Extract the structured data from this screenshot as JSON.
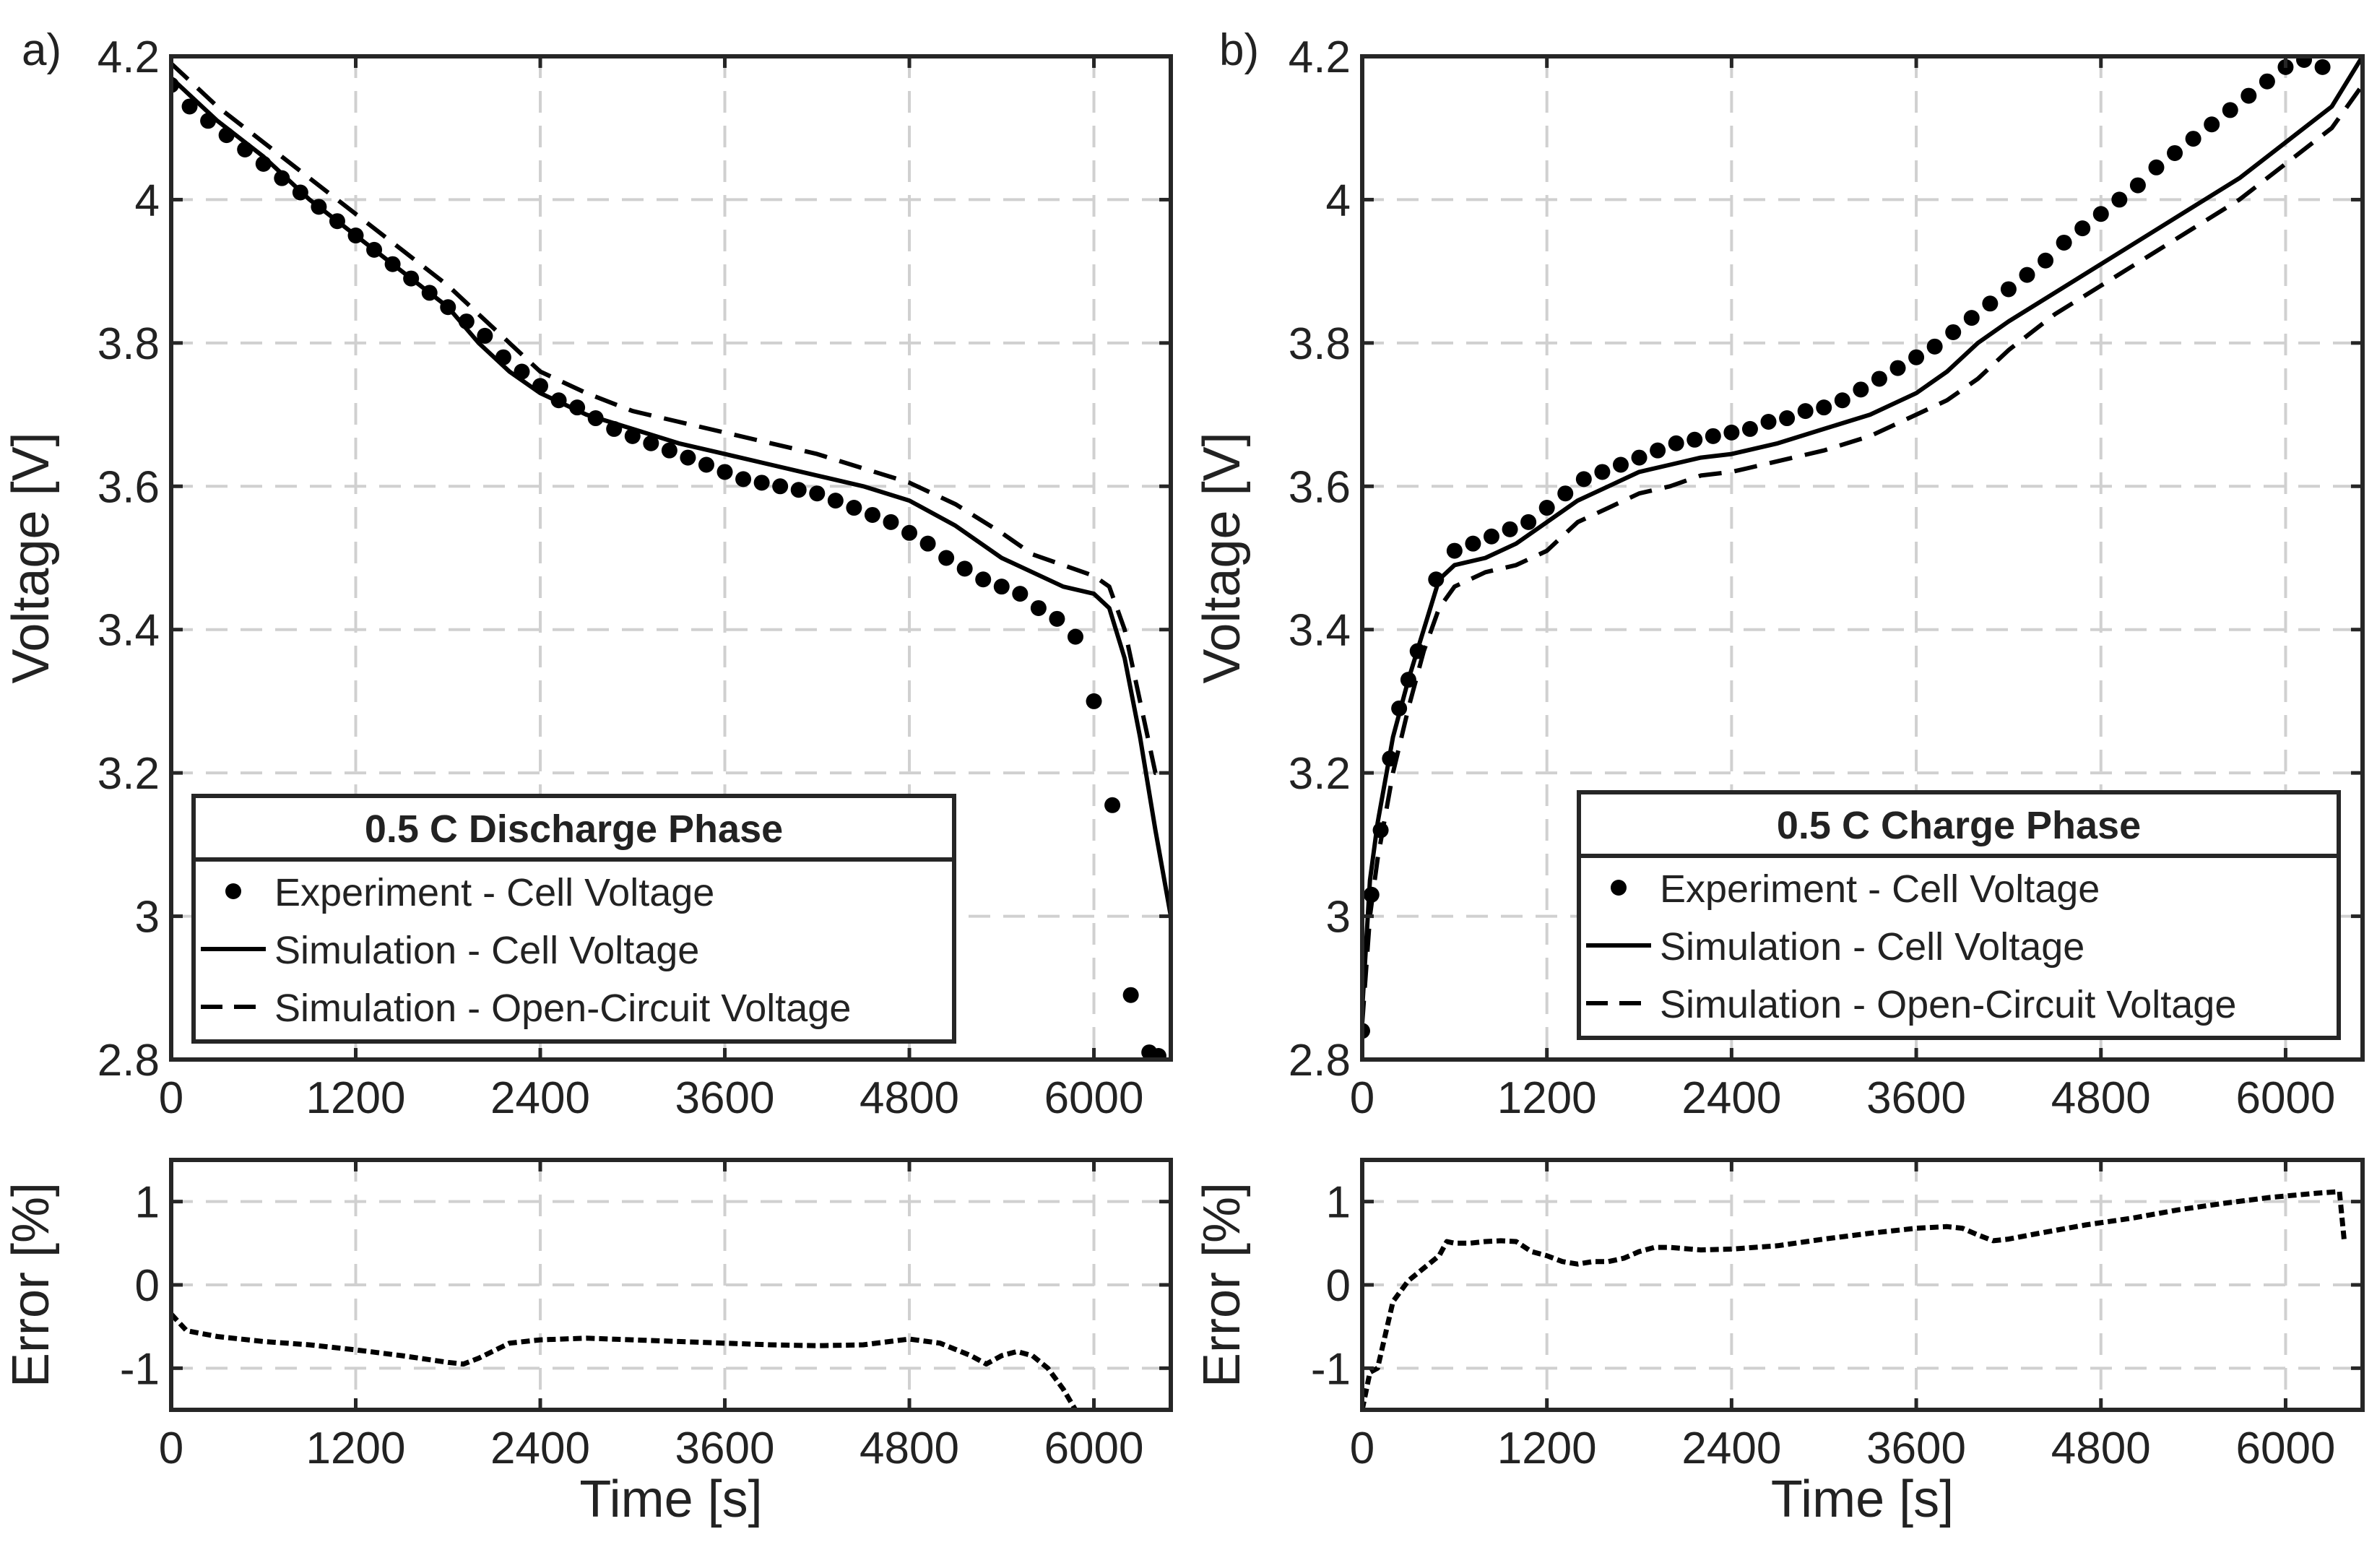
{
  "chart_data": [
    {
      "id": "a-main",
      "panel_label": "a)",
      "type": "line",
      "xlabel": "",
      "ylabel": "Voltage [V]",
      "xlim": [
        0,
        6500
      ],
      "ylim": [
        2.8,
        4.2
      ],
      "xticks": [
        0,
        1200,
        2400,
        3600,
        4800,
        6000
      ],
      "yticks": [
        2.8,
        3,
        3.2,
        3.4,
        3.6,
        3.8,
        4,
        4.2
      ],
      "grid": true,
      "legend": {
        "title": "0.5 C Discharge Phase",
        "placement": "bottom-center",
        "entries": [
          "Experiment - Cell Voltage",
          "Simulation - Cell Voltage",
          "Simulation - Open-Circuit Voltage"
        ]
      },
      "series": [
        {
          "name": "Experiment - Cell Voltage",
          "style": "dots",
          "x": [
            0,
            120,
            240,
            360,
            480,
            600,
            720,
            840,
            960,
            1080,
            1200,
            1320,
            1440,
            1560,
            1680,
            1800,
            1920,
            2040,
            2160,
            2280,
            2400,
            2520,
            2640,
            2760,
            2880,
            3000,
            3120,
            3240,
            3360,
            3480,
            3600,
            3720,
            3840,
            3960,
            4080,
            4200,
            4320,
            4440,
            4560,
            4680,
            4800,
            4920,
            5040,
            5160,
            5280,
            5400,
            5520,
            5640,
            5760,
            5880,
            6000,
            6120,
            6240,
            6360,
            6420
          ],
          "y": [
            4.16,
            4.13,
            4.11,
            4.09,
            4.07,
            4.05,
            4.03,
            4.01,
            3.99,
            3.97,
            3.95,
            3.93,
            3.91,
            3.89,
            3.87,
            3.85,
            3.83,
            3.81,
            3.78,
            3.76,
            3.74,
            3.72,
            3.71,
            3.695,
            3.68,
            3.67,
            3.66,
            3.65,
            3.64,
            3.63,
            3.62,
            3.61,
            3.605,
            3.6,
            3.595,
            3.59,
            3.58,
            3.57,
            3.56,
            3.55,
            3.535,
            3.52,
            3.5,
            3.485,
            3.47,
            3.46,
            3.45,
            3.43,
            3.415,
            3.39,
            3.3,
            3.155,
            2.89,
            2.81,
            2.805
          ]
        },
        {
          "name": "Simulation - Cell Voltage",
          "style": "solid",
          "x": [
            0,
            300,
            600,
            900,
            1200,
            1500,
            1800,
            2000,
            2200,
            2400,
            2700,
            3000,
            3300,
            3600,
            3900,
            4200,
            4500,
            4800,
            5100,
            5400,
            5600,
            5800,
            6000,
            6100,
            6200,
            6300,
            6400,
            6500
          ],
          "y": [
            4.17,
            4.11,
            4.06,
            4.0,
            3.95,
            3.9,
            3.85,
            3.8,
            3.76,
            3.73,
            3.7,
            3.68,
            3.66,
            3.645,
            3.63,
            3.615,
            3.6,
            3.58,
            3.545,
            3.5,
            3.48,
            3.46,
            3.45,
            3.43,
            3.36,
            3.25,
            3.12,
            3.0
          ]
        },
        {
          "name": "Simulation - Open-Circuit Voltage",
          "style": "dashed",
          "x": [
            0,
            300,
            600,
            900,
            1200,
            1500,
            1800,
            2000,
            2200,
            2400,
            2700,
            3000,
            3300,
            3600,
            3900,
            4200,
            4500,
            4800,
            5100,
            5400,
            5600,
            5800,
            6000,
            6100,
            6200,
            6300,
            6400,
            6480
          ],
          "y": [
            4.19,
            4.13,
            4.08,
            4.03,
            3.98,
            3.93,
            3.88,
            3.84,
            3.8,
            3.76,
            3.73,
            3.705,
            3.69,
            3.675,
            3.66,
            3.645,
            3.625,
            3.605,
            3.575,
            3.535,
            3.505,
            3.49,
            3.475,
            3.46,
            3.4,
            3.3,
            3.2,
            3.2
          ]
        }
      ]
    },
    {
      "id": "a-error",
      "type": "line",
      "xlabel": "Time [s]",
      "ylabel": "Error [%]",
      "xlim": [
        0,
        6500
      ],
      "ylim": [
        -1.5,
        1.5
      ],
      "xticks": [
        0,
        1200,
        2400,
        3600,
        4800,
        6000
      ],
      "yticks": [
        -1,
        0,
        1
      ],
      "grid": true,
      "series": [
        {
          "style": "dashed-fine",
          "x": [
            0,
            100,
            300,
            600,
            900,
            1200,
            1500,
            1800,
            1900,
            2000,
            2200,
            2400,
            2700,
            3000,
            3300,
            3600,
            3900,
            4200,
            4500,
            4800,
            5000,
            5200,
            5300,
            5400,
            5500,
            5600,
            5700,
            5800,
            5880
          ],
          "y": [
            -0.35,
            -0.55,
            -0.62,
            -0.68,
            -0.72,
            -0.78,
            -0.85,
            -0.93,
            -0.95,
            -0.88,
            -0.7,
            -0.66,
            -0.64,
            -0.66,
            -0.68,
            -0.7,
            -0.72,
            -0.73,
            -0.72,
            -0.65,
            -0.7,
            -0.85,
            -0.95,
            -0.85,
            -0.8,
            -0.85,
            -1.0,
            -1.25,
            -1.5
          ]
        }
      ]
    },
    {
      "id": "b-main",
      "panel_label": "b)",
      "type": "line",
      "xlabel": "",
      "ylabel": "Voltage [V]",
      "xlim": [
        0,
        6500
      ],
      "ylim": [
        2.8,
        4.2
      ],
      "xticks": [
        0,
        1200,
        2400,
        3600,
        4800,
        6000
      ],
      "yticks": [
        2.8,
        3,
        3.2,
        3.4,
        3.6,
        3.8,
        4,
        4.2
      ],
      "grid": true,
      "legend": {
        "title": "0.5 C Charge Phase",
        "placement": "bottom-right",
        "entries": [
          "Experiment - Cell Voltage",
          "Simulation - Cell Voltage",
          "Simulation - Open-Circuit Voltage"
        ]
      },
      "series": [
        {
          "name": "Experiment - Cell Voltage",
          "style": "dots",
          "x": [
            0,
            60,
            120,
            180,
            240,
            300,
            360,
            480,
            600,
            720,
            840,
            960,
            1080,
            1200,
            1320,
            1440,
            1560,
            1680,
            1800,
            1920,
            2040,
            2160,
            2280,
            2400,
            2520,
            2640,
            2760,
            2880,
            3000,
            3120,
            3240,
            3360,
            3480,
            3600,
            3720,
            3840,
            3960,
            4080,
            4200,
            4320,
            4440,
            4560,
            4680,
            4800,
            4920,
            5040,
            5160,
            5280,
            5400,
            5520,
            5640,
            5760,
            5880,
            6000,
            6120,
            6240
          ],
          "y": [
            2.84,
            3.03,
            3.12,
            3.22,
            3.29,
            3.33,
            3.37,
            3.47,
            3.51,
            3.52,
            3.53,
            3.54,
            3.55,
            3.57,
            3.59,
            3.61,
            3.62,
            3.63,
            3.64,
            3.65,
            3.66,
            3.665,
            3.67,
            3.675,
            3.68,
            3.69,
            3.695,
            3.705,
            3.71,
            3.72,
            3.735,
            3.75,
            3.765,
            3.78,
            3.795,
            3.815,
            3.835,
            3.855,
            3.875,
            3.895,
            3.915,
            3.94,
            3.96,
            3.98,
            4.0,
            4.02,
            4.045,
            4.065,
            4.085,
            4.105,
            4.125,
            4.145,
            4.165,
            4.185,
            4.195,
            4.185
          ]
        },
        {
          "name": "Simulation - Cell Voltage",
          "style": "solid",
          "x": [
            0,
            50,
            100,
            200,
            300,
            400,
            500,
            600,
            800,
            1000,
            1200,
            1400,
            1600,
            1800,
            2000,
            2200,
            2400,
            2700,
            3000,
            3300,
            3600,
            3800,
            4000,
            4200,
            4500,
            4800,
            5100,
            5400,
            5700,
            6000,
            6300,
            6500
          ],
          "y": [
            2.87,
            3.05,
            3.13,
            3.25,
            3.33,
            3.4,
            3.47,
            3.49,
            3.5,
            3.52,
            3.55,
            3.58,
            3.6,
            3.62,
            3.63,
            3.64,
            3.645,
            3.66,
            3.68,
            3.7,
            3.73,
            3.76,
            3.8,
            3.83,
            3.87,
            3.91,
            3.95,
            3.99,
            4.03,
            4.08,
            4.13,
            4.2
          ]
        },
        {
          "name": "Simulation - Open-Circuit Voltage",
          "style": "dashed",
          "x": [
            0,
            50,
            100,
            200,
            300,
            400,
            500,
            600,
            800,
            1000,
            1200,
            1400,
            1600,
            1800,
            2000,
            2200,
            2400,
            2700,
            3000,
            3300,
            3600,
            3800,
            4000,
            4200,
            4500,
            4800,
            5100,
            5400,
            5700,
            6000,
            6300,
            6500
          ],
          "y": [
            2.85,
            3.0,
            3.08,
            3.2,
            3.29,
            3.37,
            3.43,
            3.46,
            3.48,
            3.49,
            3.51,
            3.55,
            3.57,
            3.59,
            3.6,
            3.615,
            3.62,
            3.635,
            3.65,
            3.67,
            3.7,
            3.72,
            3.75,
            3.79,
            3.84,
            3.88,
            3.92,
            3.96,
            4.0,
            4.05,
            4.1,
            4.16
          ]
        }
      ]
    },
    {
      "id": "b-error",
      "type": "line",
      "xlabel": "Time [s]",
      "ylabel": "Error [%]",
      "xlim": [
        0,
        6500
      ],
      "ylim": [
        -1.5,
        1.5
      ],
      "xticks": [
        0,
        1200,
        2400,
        3600,
        4800,
        6000
      ],
      "yticks": [
        -1,
        0,
        1
      ],
      "grid": true,
      "series": [
        {
          "style": "dashed-fine",
          "x": [
            0,
            50,
            100,
            200,
            300,
            400,
            500,
            550,
            600,
            700,
            800,
            900,
            1000,
            1100,
            1200,
            1300,
            1400,
            1500,
            1600,
            1700,
            1800,
            1900,
            2000,
            2200,
            2400,
            2700,
            3000,
            3300,
            3600,
            3800,
            3900,
            4000,
            4100,
            4200,
            4400,
            4700,
            5000,
            5300,
            5600,
            5900,
            6200,
            6350,
            6380
          ],
          "y": [
            -1.5,
            -1.05,
            -1.0,
            -0.2,
            0.05,
            0.2,
            0.35,
            0.52,
            0.5,
            0.5,
            0.52,
            0.53,
            0.52,
            0.4,
            0.35,
            0.28,
            0.25,
            0.28,
            0.28,
            0.32,
            0.4,
            0.45,
            0.45,
            0.42,
            0.43,
            0.47,
            0.55,
            0.62,
            0.68,
            0.7,
            0.68,
            0.6,
            0.53,
            0.55,
            0.62,
            0.72,
            0.8,
            0.9,
            0.98,
            1.05,
            1.1,
            1.12,
            0.55
          ]
        }
      ]
    }
  ]
}
